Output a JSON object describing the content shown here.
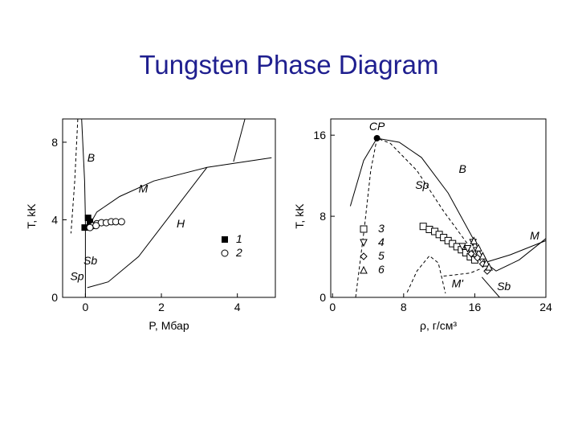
{
  "title": "Tungsten Phase Diagram",
  "chart_data": [
    {
      "type": "line",
      "xlabel": "P, Мбар",
      "ylabel": "T, kK",
      "xlim": [
        -0.6,
        5
      ],
      "ylim": [
        0,
        9.2
      ],
      "x_ticks": [
        0,
        2,
        4
      ],
      "y_ticks": [
        0,
        4,
        8
      ],
      "grid": false,
      "curves": {
        "B": [
          [
            -0.1,
            9.2
          ],
          [
            -0.02,
            6
          ],
          [
            0.0,
            4.0
          ],
          [
            0.0,
            0.0
          ]
        ],
        "Sp": [
          [
            -0.2,
            9.2
          ],
          [
            -0.28,
            6
          ],
          [
            -0.38,
            3.3
          ]
        ],
        "M": [
          [
            0.1,
            3.7
          ],
          [
            0.3,
            4.4
          ],
          [
            0.9,
            5.2
          ],
          [
            1.8,
            6.0
          ],
          [
            3.2,
            6.7
          ],
          [
            4.9,
            7.2
          ]
        ],
        "H": [
          [
            0.05,
            0.5
          ],
          [
            0.6,
            0.8
          ],
          [
            1.4,
            2.1
          ],
          [
            2.3,
            4.4
          ],
          [
            3.2,
            6.7
          ]
        ],
        "upper": [
          [
            4.2,
            9.2
          ],
          [
            3.9,
            7.0
          ]
        ]
      },
      "labels": {
        "B": "B",
        "M": "M",
        "H": "H",
        "Sb": "Sb",
        "Sp": "Sp"
      },
      "series": [
        {
          "name": "1",
          "marker": "filled-square",
          "points": [
            [
              0.07,
              4.1
            ],
            [
              0.12,
              3.9
            ],
            [
              -0.02,
              3.6
            ]
          ]
        },
        {
          "name": "2",
          "marker": "open-circle",
          "points": [
            [
              0.2,
              3.7
            ],
            [
              0.3,
              3.8
            ],
            [
              0.42,
              3.85
            ],
            [
              0.55,
              3.85
            ],
            [
              0.68,
              3.9
            ],
            [
              0.8,
              3.9
            ],
            [
              0.95,
              3.9
            ],
            [
              0.12,
              3.6
            ],
            [
              0.28,
              3.7
            ]
          ]
        }
      ]
    },
    {
      "type": "line",
      "xlabel": "ρ, г/см³",
      "ylabel": "T, kK",
      "xlim": [
        -0.2,
        24
      ],
      "ylim": [
        0,
        17.6
      ],
      "x_ticks": [
        0,
        8,
        16,
        24
      ],
      "y_ticks": [
        0,
        8,
        16
      ],
      "grid": false,
      "critical_point": {
        "label": "CP",
        "x": 5.0,
        "y": 15.7
      },
      "curves": {
        "B": [
          [
            2.0,
            9.0
          ],
          [
            3.5,
            13.5
          ],
          [
            5.0,
            15.7
          ],
          [
            7.5,
            15.3
          ],
          [
            10.0,
            13.8
          ],
          [
            13.0,
            10.3
          ],
          [
            16.0,
            5.5
          ],
          [
            17.2,
            3.4
          ],
          [
            18.4,
            2.6
          ],
          [
            21.0,
            3.7
          ],
          [
            24.0,
            5.8
          ]
        ],
        "Sp": [
          [
            2.6,
            0.0
          ],
          [
            3.6,
            7.0
          ],
          [
            4.3,
            12.5
          ],
          [
            5.0,
            15.7
          ],
          [
            6.5,
            15.2
          ],
          [
            9.5,
            12.5
          ],
          [
            12.5,
            8.5
          ],
          [
            15.0,
            5.5
          ],
          [
            17.0,
            3.2
          ]
        ],
        "M": [
          [
            17.0,
            3.4
          ],
          [
            20.0,
            4.2
          ],
          [
            24.0,
            5.6
          ]
        ],
        "lower": [
          [
            8.4,
            0.5
          ],
          [
            9.5,
            2.6
          ],
          [
            10.9,
            4.1
          ],
          [
            11.9,
            3.4
          ],
          [
            12.7,
            0.4
          ]
        ],
        "Mprime": [
          [
            12.5,
            2.1
          ],
          [
            13.5,
            2.2
          ],
          [
            15.5,
            2.4
          ],
          [
            16.6,
            2.8
          ]
        ],
        "Sb": [
          [
            16.8,
            2.0
          ],
          [
            17.8,
            1.0
          ],
          [
            18.8,
            0.0
          ]
        ]
      },
      "labels": {
        "B": "B",
        "Sp": "Sp",
        "M": "M",
        "M_prime": "M'",
        "Sb": "Sb"
      },
      "legend_entries": [
        "3",
        "4",
        "5",
        "6"
      ],
      "legend_markers": [
        "square",
        "triangle-down",
        "diamond",
        "triangle-up"
      ],
      "series": [
        {
          "name": "3",
          "marker": "square",
          "points": [
            [
              10.2,
              7.0
            ],
            [
              10.9,
              6.7
            ],
            [
              11.5,
              6.5
            ],
            [
              12.0,
              6.2
            ],
            [
              12.5,
              5.9
            ],
            [
              13.0,
              5.6
            ],
            [
              13.5,
              5.3
            ],
            [
              14.0,
              5.0
            ],
            [
              14.5,
              4.7
            ],
            [
              15.0,
              4.4
            ],
            [
              15.5,
              4.0
            ],
            [
              16.0,
              3.7
            ]
          ]
        },
        {
          "name": "4",
          "marker": "triangle-down",
          "points": [
            [
              14.6,
              5.0
            ],
            [
              15.2,
              4.8
            ],
            [
              15.8,
              5.4
            ],
            [
              16.2,
              4.6
            ]
          ]
        },
        {
          "name": "5",
          "marker": "diamond",
          "points": [
            [
              15.6,
              4.3
            ],
            [
              16.3,
              3.9
            ],
            [
              16.9,
              3.3
            ],
            [
              17.4,
              2.6
            ]
          ]
        },
        {
          "name": "6",
          "marker": "triangle-up",
          "points": [
            [
              15.9,
              5.6
            ],
            [
              16.4,
              4.9
            ],
            [
              16.9,
              4.1
            ],
            [
              17.3,
              3.4
            ],
            [
              17.6,
              3.0
            ]
          ]
        }
      ]
    }
  ]
}
